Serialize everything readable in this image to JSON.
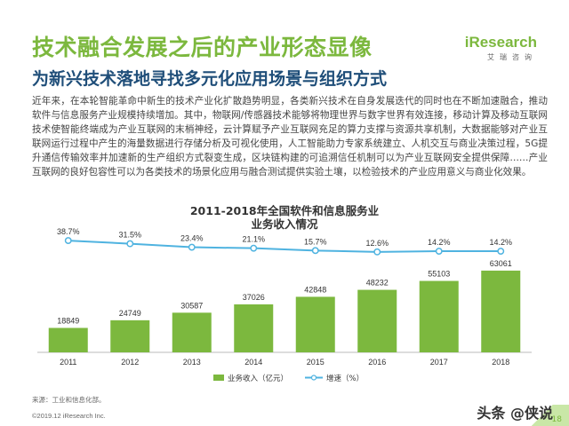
{
  "header": {
    "title": "技术融合发展之后的产业形态显像",
    "subtitle": "为新兴技术落地寻找多元化应用场景与组织方式"
  },
  "logo": {
    "main": "iResearch",
    "sub": "艾瑞咨询"
  },
  "body_text": "近年来，在本轮智能革命中新生的技术产业化扩散趋势明显，各类新兴技术在自身发展迭代的同时也在不断加速融合，推动软件与信息服务产业规模持续增加。其中，物联网/传感器技术能够将物理世界与数字世界有效连接，移动计算及移动互联网技术使智能终端成为产业互联网的末梢神经，云计算赋予产业互联网充足的算力支撑与资源共享机制，大数据能够对产业互联网运行过程中产生的海量数据进行存储分析及可视化使用，人工智能助力专家系统建立、人机交互与商业决策过程，5G提升通信传输效率并加速新的生产组织方式裂变生成，区块链构建的可追溯信任机制可以为产业互联网安全提供保障……产业互联网的良好包容性可以为各类技术的场景化应用与融合测试提供实验土壤，以检验技术的产业应用意义与商业化效果。",
  "chart_data": {
    "type": "bar",
    "title_line1": "2011-2018年全国软件和信息服务业",
    "title_line2": "业务收入情况",
    "categories": [
      "2011",
      "2012",
      "2013",
      "2014",
      "2015",
      "2016",
      "2017",
      "2018"
    ],
    "series": [
      {
        "name": "业务收入（亿元）",
        "type": "bar",
        "values": [
          18849,
          24749,
          30587,
          37026,
          42848,
          48232,
          55103,
          63061
        ],
        "color": "#7cb83e"
      },
      {
        "name": "增速（%）",
        "type": "line",
        "values": [
          38.7,
          31.5,
          23.4,
          21.1,
          15.7,
          12.6,
          14.2,
          14.2
        ],
        "labels": [
          "38.7%",
          "31.5%",
          "23.4%",
          "21.1%",
          "15.7%",
          "12.6%",
          "14.2%",
          "14.2%"
        ],
        "color": "#4fb3e0"
      }
    ],
    "bar_ylim": [
      0,
      70000
    ],
    "line_ylim": [
      0,
      45
    ]
  },
  "source": "来源：工业和信息化部。",
  "copyright": "©2019.12 iResearch Inc.",
  "watermark": "头条 @侠说",
  "page_number": "18"
}
